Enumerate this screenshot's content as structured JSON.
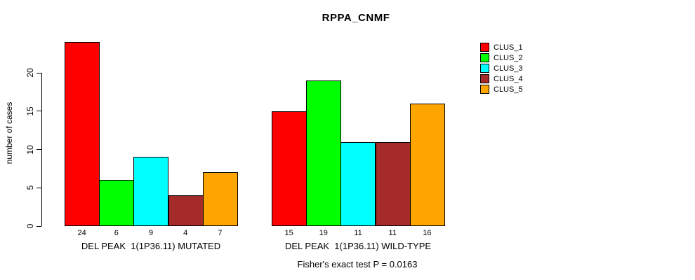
{
  "chart_data": {
    "type": "bar",
    "title": "RPPA_CNMF",
    "ylabel": "number of cases",
    "ylim": [
      0,
      24
    ],
    "yticks": [
      0,
      5,
      10,
      15,
      20
    ],
    "grid": false,
    "legend_position": "top-right",
    "series_labels": [
      "CLUS_1",
      "CLUS_2",
      "CLUS_3",
      "CLUS_4",
      "CLUS_5"
    ],
    "colors": [
      "#ff0000",
      "#00ff00",
      "#00ffff",
      "#a52a2a",
      "#ffa500"
    ],
    "groups": [
      {
        "label": "DEL PEAK  1(1P36.11) MUTATED",
        "values": [
          24,
          6,
          9,
          4,
          7
        ]
      },
      {
        "label": "DEL PEAK  1(1P36.11) WILD-TYPE",
        "values": [
          15,
          19,
          11,
          11,
          16
        ]
      }
    ],
    "annotation": "Fisher's exact test P = 0.0163"
  }
}
